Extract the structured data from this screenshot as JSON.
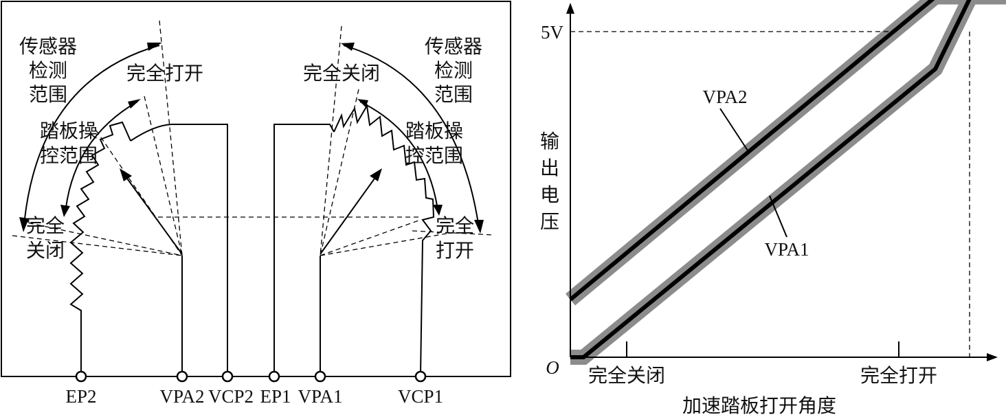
{
  "sensor_diagram": {
    "left_sensor": {
      "detection_range": [
        "传感器",
        "检测",
        "范围"
      ],
      "pedal_range": [
        "踏板操",
        "控范围"
      ],
      "fully_open": "完全打开",
      "fully_closed": [
        "完全",
        "关闭"
      ]
    },
    "right_sensor": {
      "detection_range": [
        "传感器",
        "检测",
        "范围"
      ],
      "pedal_range": [
        "踏板操",
        "控范围"
      ],
      "fully_closed": "完全关闭",
      "fully_open": [
        "完全",
        "打开"
      ]
    },
    "terminals": [
      "EP2",
      "VPA2",
      "VCP2",
      "EP1",
      "VPA1",
      "VCP1"
    ]
  },
  "chart_data": {
    "type": "line",
    "title": "",
    "xlabel": "加速踏板打开角度",
    "ylabel": [
      "输",
      "出",
      "电",
      "压"
    ],
    "origin_label": "O",
    "y_tick_label": "5V",
    "x_tick_labels": [
      "完全关闭",
      "完全打开"
    ],
    "xlim": [
      0,
      100
    ],
    "ylim": [
      0,
      5.3
    ],
    "series": [
      {
        "name": "VPA2",
        "x": [
          0,
          83,
          91,
          100
        ],
        "y": [
          0.8,
          5.0,
          5.0,
          5.0
        ]
      },
      {
        "name": "VPA1",
        "x": [
          0,
          3,
          83,
          91,
          100
        ],
        "y": [
          0.0,
          0.0,
          4.0,
          5.0,
          5.0
        ]
      }
    ],
    "band_color": "#8c8c8c",
    "line_color": "#000000"
  }
}
